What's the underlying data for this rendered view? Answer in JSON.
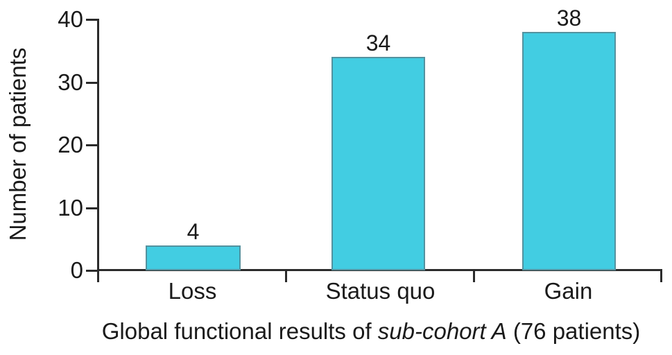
{
  "chart_data": {
    "type": "bar",
    "title": "",
    "categories": [
      "Loss",
      "Status quo",
      "Gain"
    ],
    "values": [
      4,
      34,
      38
    ],
    "ylabel": "Number of patients",
    "xlabel": "Global functional results of sub-cohort A (76 patients)",
    "xlabel_parts": {
      "prefix": "Global functional results of ",
      "italic": "sub-cohort A",
      "suffix": " (76 patients)"
    },
    "yticks": [
      0,
      10,
      20,
      30,
      40
    ],
    "ylim": [
      0,
      40
    ],
    "grid": false,
    "legend": false,
    "bar_fill": "#42cde2",
    "bar_border": "#53929f",
    "axis_color": "#2b2b2b",
    "text_color": "#1a1a1a"
  }
}
